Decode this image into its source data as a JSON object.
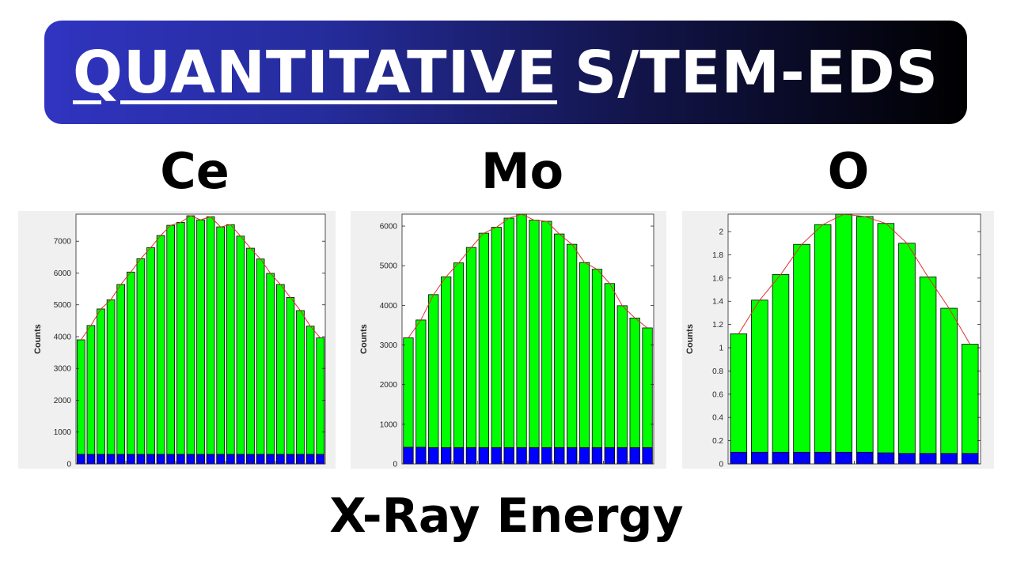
{
  "title": {
    "underlined": "QUANTITATIVE",
    "rest": "S/TEM-EDS"
  },
  "x_axis_caption": "X-Ray Energy",
  "colors": {
    "signal": "#00ff00",
    "background": "#0000ff",
    "fit_line": "#e03030"
  },
  "chart_data": [
    {
      "type": "bar",
      "element": "Ce",
      "ylabel": "Counts",
      "ylim": [
        0,
        7850
      ],
      "yticks": [
        0,
        1000,
        2000,
        3000,
        4000,
        5000,
        6000,
        7000
      ],
      "ytick_labels": [
        "0",
        "1000",
        "2000",
        "3000",
        "4000",
        "5000",
        "6000",
        "7000"
      ],
      "series": [
        {
          "values": [
            3900,
            4350,
            4870,
            5160,
            5640,
            6030,
            6450,
            6800,
            7180,
            7500,
            7590,
            7800,
            7670,
            7770,
            7450,
            7520,
            7160,
            6780,
            6440,
            5990,
            5640,
            5230,
            4820,
            4330,
            3960
          ]
        },
        {
          "values": [
            300,
            300,
            300,
            300,
            300,
            300,
            300,
            300,
            300,
            300,
            300,
            300,
            300,
            300,
            300,
            300,
            300,
            300,
            300,
            300,
            300,
            300,
            300,
            300,
            300
          ]
        }
      ]
    },
    {
      "type": "bar",
      "element": "Mo",
      "ylabel": "Counts",
      "ylim": [
        0,
        6300
      ],
      "yticks": [
        0,
        1000,
        2000,
        3000,
        4000,
        5000,
        6000
      ],
      "ytick_labels": [
        "0",
        "1000",
        "2000",
        "3000",
        "4000",
        "5000",
        "6000"
      ],
      "series": [
        {
          "values": [
            3180,
            3630,
            4270,
            4720,
            5070,
            5460,
            5820,
            5970,
            6200,
            6300,
            6150,
            6120,
            5800,
            5540,
            5080,
            4910,
            4550,
            3990,
            3680,
            3430
          ]
        },
        {
          "values": [
            420,
            420,
            410,
            410,
            410,
            410,
            410,
            410,
            410,
            410,
            410,
            410,
            410,
            410,
            410,
            410,
            410,
            410,
            410,
            410
          ]
        }
      ]
    },
    {
      "type": "bar",
      "element": "O",
      "ylabel": "Counts",
      "ylim": [
        0,
        2.15
      ],
      "yticks": [
        0,
        0.2,
        0.4,
        0.6,
        0.8,
        1,
        1.2,
        1.4,
        1.6,
        1.8,
        2
      ],
      "ytick_labels": [
        "0",
        "0.2",
        "0.4",
        "0.6",
        "0.8",
        "1",
        "1.2",
        "1.4",
        "1.6",
        "1.8",
        "2"
      ],
      "series": [
        {
          "values": [
            1.12,
            1.41,
            1.63,
            1.89,
            2.06,
            2.15,
            2.13,
            2.07,
            1.9,
            1.61,
            1.34,
            1.03
          ]
        },
        {
          "values": [
            0.1,
            0.1,
            0.1,
            0.1,
            0.1,
            0.1,
            0.1,
            0.095,
            0.09,
            0.09,
            0.09,
            0.09
          ]
        }
      ]
    }
  ]
}
